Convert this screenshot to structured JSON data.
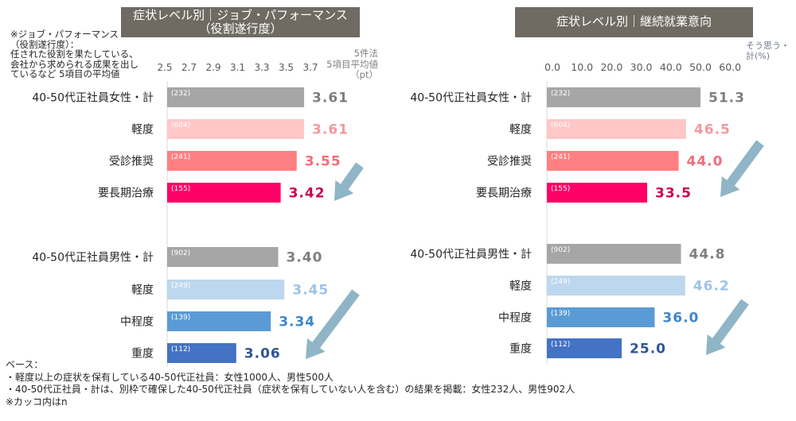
{
  "left_panel": {
    "title_line1": "症状レベル別｜ジョブ・パフォーマンス",
    "title_line2": "（役割遂行度）",
    "note_lines": [
      "※ジョブ・パフォーマンス",
      "（役割遂行度）：",
      "任された役割を果たしている、",
      "会社から求められる成果を出し",
      "ているなど 5項目の平均値"
    ],
    "unit_lines": [
      "5件法",
      "5項目平均値",
      "（pt）"
    ]
  },
  "right_panel": {
    "title": "症状レベル別｜継続就業意向",
    "unit_lines": [
      "そう思う・",
      "計(%)"
    ]
  },
  "footnotes": [
    "ベース：",
    "・軽度以上の症状を保有している40-50代正社員：女性1000人、男性500人",
    "・40-50代正社員・計は、別枠で確保した40-50代正社員（症状を保有していない人を含む）の結果を掲載：女性232人、男性902人",
    "※カッコ内はn"
  ],
  "arrow_color": "#8fb5c6",
  "chart_data": [
    {
      "type": "bar",
      "orientation": "horizontal",
      "title": "症状レベル別｜ジョブ・パフォーマンス（役割遂行度）",
      "xlabel": "5件法 5項目平均値（pt）",
      "xlim": [
        2.5,
        3.7
      ],
      "ticks": [
        2.5,
        2.7,
        2.9,
        3.1,
        3.3,
        3.5,
        3.7
      ],
      "tick_labels": [
        "2.5",
        "2.7",
        "2.9",
        "3.1",
        "3.3",
        "3.5",
        "3.7"
      ],
      "grid": false,
      "categories": [
        "40-50代正社員女性・計",
        "軽度",
        "受診推奨",
        "要長期治療",
        "40-50代正社員男性・計",
        "軽度",
        "中程度",
        "重度"
      ],
      "groups": [
        "女性",
        "女性",
        "女性",
        "女性",
        "男性",
        "男性",
        "男性",
        "男性"
      ],
      "values": [
        3.61,
        3.61,
        3.55,
        3.42,
        3.4,
        3.45,
        3.34,
        3.06
      ],
      "data_labels": [
        "3.61",
        "3.61",
        "3.55",
        "3.42",
        "3.40",
        "3.45",
        "3.34",
        "3.06"
      ],
      "n_labels": [
        "(232)",
        "(604)",
        "(241)",
        "(155)",
        "(902)",
        "(249)",
        "(139)",
        "(112)"
      ],
      "bar_colors": [
        "#a6a6a6",
        "#ffc7c8",
        "#ff7f82",
        "#ff0066",
        "#a6a6a6",
        "#bdd7ee",
        "#5b9bd5",
        "#4472c4"
      ],
      "label_colors": [
        "#7f7f7f",
        "#f29a9d",
        "#ef6e7a",
        "#cc0052",
        "#7f7f7f",
        "#9dc3e6",
        "#3d86c9",
        "#2f5597"
      ]
    },
    {
      "type": "bar",
      "orientation": "horizontal",
      "title": "症状レベル別｜継続就業意向",
      "xlabel": "そう思う・計(%)",
      "xlim": [
        0,
        60
      ],
      "ticks": [
        0,
        10,
        20,
        30,
        40,
        50,
        60
      ],
      "tick_labels": [
        "0.0",
        "10.0",
        "20.0",
        "30.0",
        "40.0",
        "50.0",
        "60.0"
      ],
      "grid": false,
      "categories": [
        "40-50代正社員女性・計",
        "軽度",
        "受診推奨",
        "要長期治療",
        "40-50代正社員男性・計",
        "軽度",
        "中程度",
        "重度"
      ],
      "groups": [
        "女性",
        "女性",
        "女性",
        "女性",
        "男性",
        "男性",
        "男性",
        "男性"
      ],
      "values": [
        51.3,
        46.5,
        44.0,
        33.5,
        44.8,
        46.2,
        36.0,
        25.0
      ],
      "data_labels": [
        "51.3",
        "46.5",
        "44.0",
        "33.5",
        "44.8",
        "46.2",
        "36.0",
        "25.0"
      ],
      "n_labels": [
        "(232)",
        "(604)",
        "(241)",
        "(155)",
        "(902)",
        "(249)",
        "(139)",
        "(112)"
      ],
      "bar_colors": [
        "#a6a6a6",
        "#ffc7c8",
        "#ff7f82",
        "#ff0066",
        "#a6a6a6",
        "#bdd7ee",
        "#5b9bd5",
        "#4472c4"
      ],
      "label_colors": [
        "#7f7f7f",
        "#f29a9d",
        "#ef6e7a",
        "#cc0052",
        "#7f7f7f",
        "#9dc3e6",
        "#3d86c9",
        "#2f5597"
      ]
    }
  ]
}
